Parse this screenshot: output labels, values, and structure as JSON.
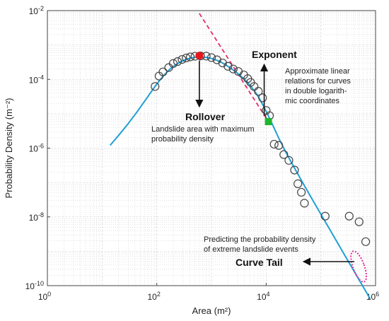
{
  "chart_data": {
    "type": "scatter",
    "xscale": "log",
    "yscale": "log",
    "xlim": [
      1,
      1000000
    ],
    "ylim": [
      1e-10,
      0.01
    ],
    "xlabel": "Area (m²)",
    "ylabel": "Probability Density (m⁻²)",
    "grid": true,
    "x_ticks": [
      {
        "value": 1,
        "base": "10",
        "exp": "0"
      },
      {
        "value": 100,
        "base": "10",
        "exp": "2"
      },
      {
        "value": 10000,
        "base": "10",
        "exp": "4"
      },
      {
        "value": 1000000,
        "base": "10",
        "exp": "6"
      }
    ],
    "y_ticks": [
      {
        "value": 0.01,
        "base": "10",
        "exp": "-2"
      },
      {
        "value": 0.0001,
        "base": "10",
        "exp": "-4"
      },
      {
        "value": 1e-06,
        "base": "10",
        "exp": "-6"
      },
      {
        "value": 1e-08,
        "base": "10",
        "exp": "-8"
      },
      {
        "value": 1e-10,
        "base": "10",
        "exp": "-10"
      }
    ],
    "points": [
      [
        93,
        6.2e-05
      ],
      [
        110,
        0.000125
      ],
      [
        130,
        0.000165
      ],
      [
        165,
        0.00022
      ],
      [
        200,
        0.00029
      ],
      [
        240,
        0.00033
      ],
      [
        290,
        0.00038
      ],
      [
        345,
        0.00042
      ],
      [
        410,
        0.00045
      ],
      [
        500,
        0.00047
      ],
      [
        630,
        0.00048
      ],
      [
        800,
        0.000475
      ],
      [
        1000,
        0.00043
      ],
      [
        1260,
        0.00037
      ],
      [
        1600,
        0.0003
      ],
      [
        2000,
        0.00024
      ],
      [
        2500,
        0.0002
      ],
      [
        3100,
        0.00017
      ],
      [
        3900,
        0.000135
      ],
      [
        4600,
        0.000105
      ],
      [
        5200,
        8.2e-05
      ],
      [
        6000,
        6.2e-05
      ],
      [
        7200,
        4.5e-05
      ],
      [
        8600,
        2.9e-05
      ],
      [
        10000,
        1.25e-05
      ],
      [
        11500,
        8.8e-06
      ],
      [
        14000,
        1.3e-06
      ],
      [
        17000,
        1.2e-06
      ],
      [
        21000,
        6.5e-07
      ],
      [
        26000,
        4.4e-07
      ],
      [
        33000,
        2.3e-07
      ],
      [
        38000,
        9.2e-08
      ],
      [
        44000,
        5.2e-08
      ],
      [
        50000,
        2.5e-08
      ],
      [
        120000,
        1.05e-08
      ],
      [
        330000,
        1.05e-08
      ],
      [
        500000,
        7.2e-09
      ],
      [
        660000,
        1.9e-09
      ]
    ],
    "fit_curve": [
      [
        14,
        1.2e-06
      ],
      [
        30,
        5e-06
      ],
      [
        60,
        2.3e-05
      ],
      [
        100,
        7.5e-05
      ],
      [
        160,
        0.00018
      ],
      [
        250,
        0.00031
      ],
      [
        400,
        0.00042
      ],
      [
        600,
        0.000455
      ],
      [
        900,
        0.00043
      ],
      [
        1400,
        0.00034
      ],
      [
        2200,
        0.00022
      ],
      [
        3500,
        0.000125
      ],
      [
        5500,
        6e-05
      ],
      [
        8000,
        2.4e-05
      ],
      [
        12000,
        6.5e-06
      ],
      [
        20000,
        1.1e-06
      ],
      [
        50000,
        8e-08
      ],
      [
        100000,
        1.2e-08
      ],
      [
        200000,
        1.8e-09
      ],
      [
        400000,
        2.7e-10
      ],
      [
        800000,
        4.1e-11
      ]
    ],
    "asymptote": [
      [
        600,
        0.0083
      ],
      [
        11000,
        5.9e-06
      ]
    ],
    "rollover_point": [
      600,
      0.00049
    ],
    "exponent_point": [
      11000,
      5.9e-06
    ],
    "tail_ellipse_center": [
      490000,
      3.6e-10
    ],
    "colors": {
      "points_stroke": "#444444",
      "fit_curve": "#1f9fd6",
      "asymptote": "#e0306a",
      "rollover_marker": "#e8151b",
      "exponent_marker": "#1eb52f",
      "tail_ellipse": "#e0309a",
      "arrows": "#111111",
      "grid": "#d0d0d0"
    },
    "annotations": {
      "rollover_title": "Rollover",
      "rollover_text": [
        "Landslide area with maximum",
        "probability density"
      ],
      "exponent_title": "Exponent",
      "exponent_text": [
        "Approximate linear",
        "relations for curves",
        "in double logarith-",
        "mic coordinates"
      ],
      "tail_title": "Curve Tail",
      "tail_text": [
        "Predicting the probability density",
        "of extreme landslide events"
      ]
    }
  }
}
